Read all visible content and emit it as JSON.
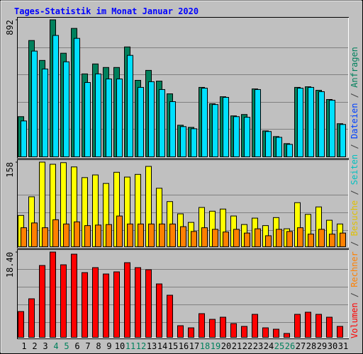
{
  "title": "Tages-Statistik im Monat Januar 2020",
  "legend": [
    {
      "name": "Volumen",
      "color": "#ff0000"
    },
    {
      "name": "Rechner",
      "color": "#ff8000"
    },
    {
      "name": "Besuche",
      "color": "#e0c000"
    },
    {
      "name": "Seiten",
      "color": "#00c0c0"
    },
    {
      "name": "Dateien",
      "color": "#0040ff"
    },
    {
      "name": "Anfragen",
      "color": "#00805c"
    }
  ],
  "chart_data": [
    {
      "type": "bar",
      "ylim": [
        0,
        892
      ],
      "yticks": [
        892
      ],
      "series": [
        {
          "color": "#00805c",
          "values": [
            260,
            757,
            627,
            892,
            674,
            836,
            539,
            604,
            581,
            581,
            715,
            497,
            562,
            492,
            409,
            204,
            190,
            451,
            344,
            390,
            265,
            274,
            441,
            167,
            130,
            84,
            451,
            455,
            432,
            372,
            214
          ]
        },
        {
          "color": "#00e0ff",
          "values": [
            232,
            688,
            571,
            790,
            618,
            771,
            483,
            539,
            506,
            506,
            660,
            451,
            488,
            437,
            358,
            195,
            181,
            446,
            339,
            386,
            260,
            256,
            437,
            163,
            125,
            79,
            446,
            451,
            423,
            367,
            209
          ]
        }
      ]
    },
    {
      "type": "bar",
      "ylim": [
        0,
        158
      ],
      "yticks": [
        158
      ],
      "series": [
        {
          "color": "#ffff00",
          "values": [
            58,
            93,
            158,
            154,
            157,
            149,
            129,
            134,
            118,
            139,
            130,
            135,
            150,
            109,
            84,
            61,
            45,
            73,
            66,
            70,
            57,
            41,
            53,
            39,
            54,
            33,
            82,
            60,
            74,
            49,
            42
          ]
        },
        {
          "color": "#ff8000",
          "values": [
            35,
            44,
            35,
            50,
            42,
            46,
            39,
            40,
            41,
            57,
            42,
            42,
            42,
            42,
            42,
            37,
            28,
            35,
            32,
            27,
            32,
            25,
            33,
            20,
            32,
            28,
            35,
            23,
            32,
            23,
            25
          ]
        }
      ]
    },
    {
      "type": "bar",
      "ylim": [
        0,
        18.4
      ],
      "yticks": [
        {
          "value": 18.4,
          "label": "18.40"
        }
      ],
      "categories": [
        "1",
        "2",
        "3",
        "4",
        "5",
        "6",
        "7",
        "8",
        "9",
        "10",
        "11",
        "12",
        "13",
        "14",
        "15",
        "16",
        "17",
        "18",
        "19",
        "20",
        "21",
        "22",
        "23",
        "24",
        "25",
        "26",
        "27",
        "28",
        "29",
        "30",
        "31"
      ],
      "category_colors": [
        "#000000",
        "#000000",
        "#000000",
        "#00805c",
        "#00805c",
        "#000000",
        "#000000",
        "#000000",
        "#000000",
        "#000000",
        "#00805c",
        "#00805c",
        "#000000",
        "#000000",
        "#000000",
        "#000000",
        "#000000",
        "#00805c",
        "#00805c",
        "#000000",
        "#000000",
        "#000000",
        "#000000",
        "#000000",
        "#00805c",
        "#00805c",
        "#000000",
        "#000000",
        "#000000",
        "#000000",
        "#000000"
      ],
      "series": [
        {
          "color": "#ff0000",
          "values": [
            5.52,
            8.28,
            15.49,
            18.4,
            15.64,
            17.94,
            13.95,
            15.03,
            13.65,
            14.11,
            16.1,
            15.03,
            14.57,
            11.5,
            9.05,
            2.45,
            1.99,
            5.06,
            3.83,
            4.29,
            2.91,
            2.3,
            4.91,
            1.99,
            1.69,
            0.77,
            4.91,
            5.37,
            4.91,
            4.29,
            2.3
          ]
        }
      ]
    }
  ]
}
